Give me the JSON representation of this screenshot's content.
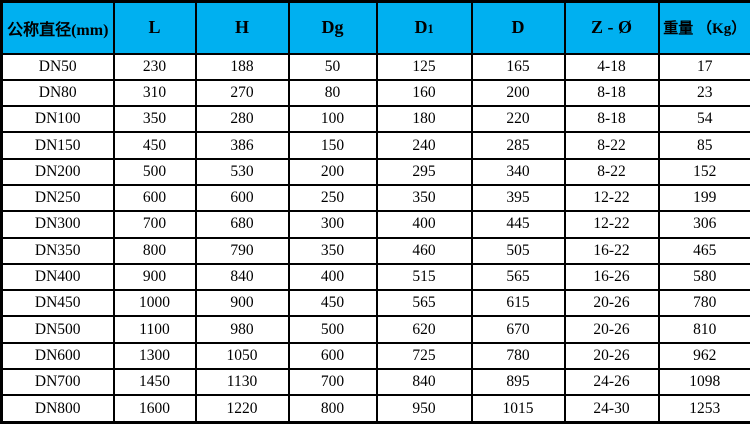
{
  "colors": {
    "header_bg": "#00B0F0",
    "border": "#000000",
    "cell_bg": "#ffffff",
    "text": "#000000"
  },
  "table": {
    "columns": [
      {
        "label": "公称直径(mm)"
      },
      {
        "label": "L"
      },
      {
        "label": "H"
      },
      {
        "label": "Dg"
      },
      {
        "label": "D",
        "sub": "1"
      },
      {
        "label": "D"
      },
      {
        "label": "Z - Ø"
      },
      {
        "label": "重量 （Kg）"
      }
    ],
    "rows": [
      [
        "DN50",
        "230",
        "188",
        "50",
        "125",
        "165",
        "4-18",
        "17"
      ],
      [
        "DN80",
        "310",
        "270",
        "80",
        "160",
        "200",
        "8-18",
        "23"
      ],
      [
        "DN100",
        "350",
        "280",
        "100",
        "180",
        "220",
        "8-18",
        "54"
      ],
      [
        "DN150",
        "450",
        "386",
        "150",
        "240",
        "285",
        "8-22",
        "85"
      ],
      [
        "DN200",
        "500",
        "530",
        "200",
        "295",
        "340",
        "8-22",
        "152"
      ],
      [
        "DN250",
        "600",
        "600",
        "250",
        "350",
        "395",
        "12-22",
        "199"
      ],
      [
        "DN300",
        "700",
        "680",
        "300",
        "400",
        "445",
        "12-22",
        "306"
      ],
      [
        "DN350",
        "800",
        "790",
        "350",
        "460",
        "505",
        "16-22",
        "465"
      ],
      [
        "DN400",
        "900",
        "840",
        "400",
        "515",
        "565",
        "16-26",
        "580"
      ],
      [
        "DN450",
        "1000",
        "900",
        "450",
        "565",
        "615",
        "20-26",
        "780"
      ],
      [
        "DN500",
        "1100",
        "980",
        "500",
        "620",
        "670",
        "20-26",
        "810"
      ],
      [
        "DN600",
        "1300",
        "1050",
        "600",
        "725",
        "780",
        "20-26",
        "962"
      ],
      [
        "DN700",
        "1450",
        "1130",
        "700",
        "840",
        "895",
        "24-26",
        "1098"
      ],
      [
        "DN800",
        "1600",
        "1220",
        "800",
        "950",
        "1015",
        "24-30",
        "1253"
      ]
    ]
  }
}
